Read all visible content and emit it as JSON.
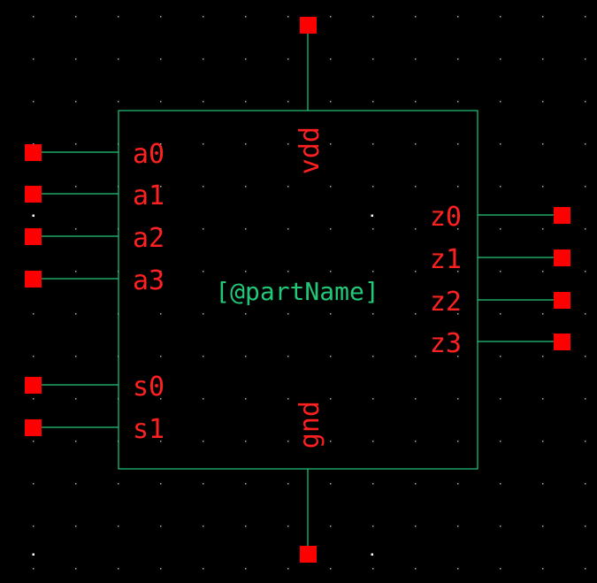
{
  "colors": {
    "background": "#000000",
    "body_outline": "#22c878",
    "wire": "#22c878",
    "pin": "#ff0000",
    "pin_label": "#ff2020",
    "part_name": "#22c878",
    "grid_dot": "#b4b4b4",
    "grid_dot_bright": "#ffffff"
  },
  "symbol": {
    "part_name": "[@partName]",
    "left_pins": [
      {
        "name": "a0",
        "label": "a0"
      },
      {
        "name": "a1",
        "label": "a1"
      },
      {
        "name": "a2",
        "label": "a2"
      },
      {
        "name": "a3",
        "label": "a3"
      },
      {
        "name": "s0",
        "label": "s0"
      },
      {
        "name": "s1",
        "label": "s1"
      }
    ],
    "right_pins": [
      {
        "name": "z0",
        "label": "z0"
      },
      {
        "name": "z1",
        "label": "z1"
      },
      {
        "name": "z2",
        "label": "z2"
      },
      {
        "name": "z3",
        "label": "z3"
      }
    ],
    "top_pins": [
      {
        "name": "vdd",
        "label": "vdd"
      }
    ],
    "bottom_pins": [
      {
        "name": "gnd",
        "label": "gnd"
      }
    ]
  }
}
